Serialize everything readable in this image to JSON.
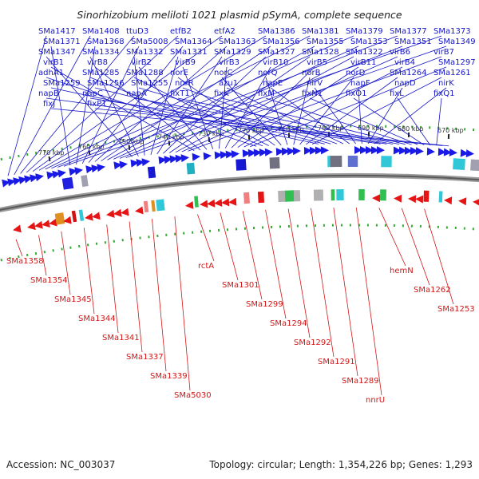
{
  "title": "Sinorhizobium meliloti 1021 plasmid pSymA, complete sequence",
  "accession": "Accession: NC_003037",
  "topology": "Topology: circular; Length: 1,354,226 bp; Genes: 1,293",
  "colors": {
    "forward_label": "#1515c8",
    "reverse_label": "#d41515",
    "forward_arrow": "#1a1ae6",
    "reverse_arrow": "#e61414",
    "backbone": "#888888"
  },
  "ticks": [
    "770 kbp",
    "760 kbp",
    "750 kbp",
    "740 kbp",
    "730 kbp",
    "720 kbp",
    "710 kbp",
    "700 kbp",
    "690 kbp",
    "680 kbp",
    "670 kbp"
  ],
  "forward_genes": [
    "SMa1417",
    "SMa1408",
    "ttuD3",
    "etfB2",
    "etfA2",
    "SMa1386",
    "SMa1381",
    "SMa1379",
    "SMa1377",
    "SMa1373",
    "SMa1371",
    "SMa1368",
    "SMa5008",
    "SMa1364",
    "SMa1363",
    "SMa1356",
    "SMa1355",
    "SMa1353",
    "SMa1351",
    "SMa1349",
    "SMa1347",
    "SMa1334",
    "SMa1332",
    "SMa1331",
    "SMa1329",
    "SMa1327",
    "SMa1328",
    "SMa1322",
    "virB6",
    "virB7",
    "virB1",
    "virB8",
    "virB2",
    "virB9",
    "virB3",
    "virB10",
    "virB5",
    "virB11",
    "virB4",
    "SMa1297",
    "adhA1",
    "SMa1285",
    "SMa1288",
    "norE",
    "norC",
    "norQ",
    "norB",
    "norD",
    "SMa1264",
    "SMa1261",
    "SMa1259",
    "SMa1256",
    "SMa1255",
    "nnrR",
    "azu1",
    "napE",
    "nirV",
    "napF",
    "napD",
    "nirK",
    "napB",
    "napC",
    "napA",
    "fixT1",
    "fixK",
    "fixM",
    "fixN1",
    "fixO1",
    "fixL",
    "fixQ1",
    "fixJ",
    "fixP1"
  ],
  "reverse_genes": [
    "SMa1358",
    "SMa1354",
    "SMa1345",
    "SMa1344",
    "SMa1341",
    "SMa1337",
    "SMa1339",
    "SMa5030",
    "rctA",
    "SMa1301",
    "SMa1299",
    "SMa1294",
    "SMa1292",
    "SMa1291",
    "SMa1289",
    "nnrU",
    "hemN",
    "SMa1262",
    "SMa1253"
  ]
}
